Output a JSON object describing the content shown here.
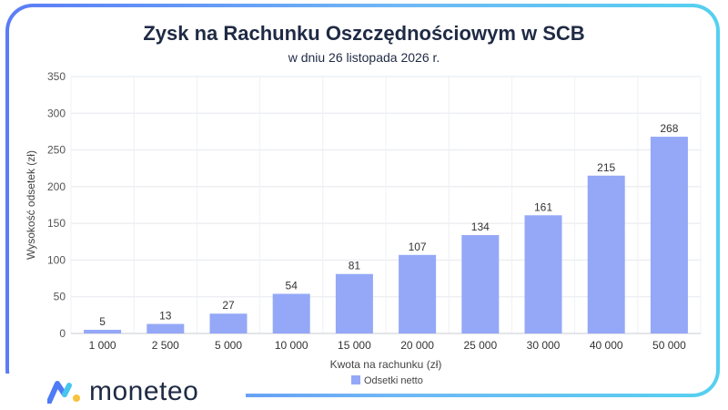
{
  "brand": {
    "name": "moneteo"
  },
  "colors": {
    "bar": "#94a8f7",
    "frame_start": "#5b7cf6",
    "frame_end": "#55d0f0",
    "text": "#1f2a44"
  },
  "chart_data": {
    "type": "bar",
    "title": "Zysk na Rachunku Oszczędnościowym w SCB",
    "subtitle": "w dniu 26 listopada 2026 r.",
    "xlabel": "Kwota na rachunku (zł)",
    "ylabel": "Wysokość odsetek (zł)",
    "ylim": [
      0,
      350
    ],
    "yticks": [
      0,
      50,
      100,
      150,
      200,
      250,
      300,
      350
    ],
    "categories": [
      "1 000",
      "2 500",
      "5 000",
      "10 000",
      "15 000",
      "20 000",
      "25 000",
      "30 000",
      "40 000",
      "50 000"
    ],
    "series": [
      {
        "name": "Odsetki netto",
        "values": [
          5,
          13,
          27,
          54,
          81,
          107,
          134,
          161,
          215,
          268
        ]
      }
    ],
    "grid": true,
    "legend": "bottom-center"
  }
}
